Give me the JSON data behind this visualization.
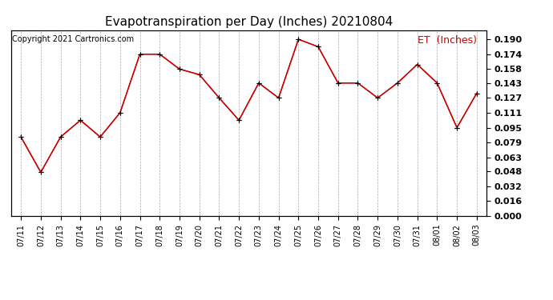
{
  "title": "Evapotranspiration per Day (Inches) 20210804",
  "copyright": "Copyright 2021 Cartronics.com",
  "legend_label": "ET  (Inches)",
  "dates": [
    "07/11",
    "07/12",
    "07/13",
    "07/14",
    "07/15",
    "07/16",
    "07/17",
    "07/18",
    "07/19",
    "07/20",
    "07/21",
    "07/22",
    "07/23",
    "07/24",
    "07/25",
    "07/26",
    "07/27",
    "07/28",
    "07/29",
    "07/30",
    "07/31",
    "08/01",
    "08/02",
    "08/03"
  ],
  "values": [
    0.085,
    0.047,
    0.085,
    0.103,
    0.085,
    0.111,
    0.174,
    0.174,
    0.158,
    0.152,
    0.127,
    0.103,
    0.143,
    0.127,
    0.19,
    0.182,
    0.143,
    0.143,
    0.127,
    0.143,
    0.163,
    0.143,
    0.095,
    0.132
  ],
  "line_color": "#cc0000",
  "marker": "+",
  "marker_size": 5,
  "ylim": [
    0.0,
    0.2
  ],
  "yticks": [
    0.0,
    0.016,
    0.032,
    0.048,
    0.063,
    0.079,
    0.095,
    0.111,
    0.127,
    0.143,
    0.158,
    0.174,
    0.19
  ],
  "background_color": "#ffffff",
  "grid_color": "#aaaaaa",
  "title_fontsize": 11,
  "copyright_fontsize": 7,
  "legend_fontsize": 9,
  "tick_fontsize": 7,
  "ytick_fontsize": 8,
  "legend_color": "#cc0000"
}
